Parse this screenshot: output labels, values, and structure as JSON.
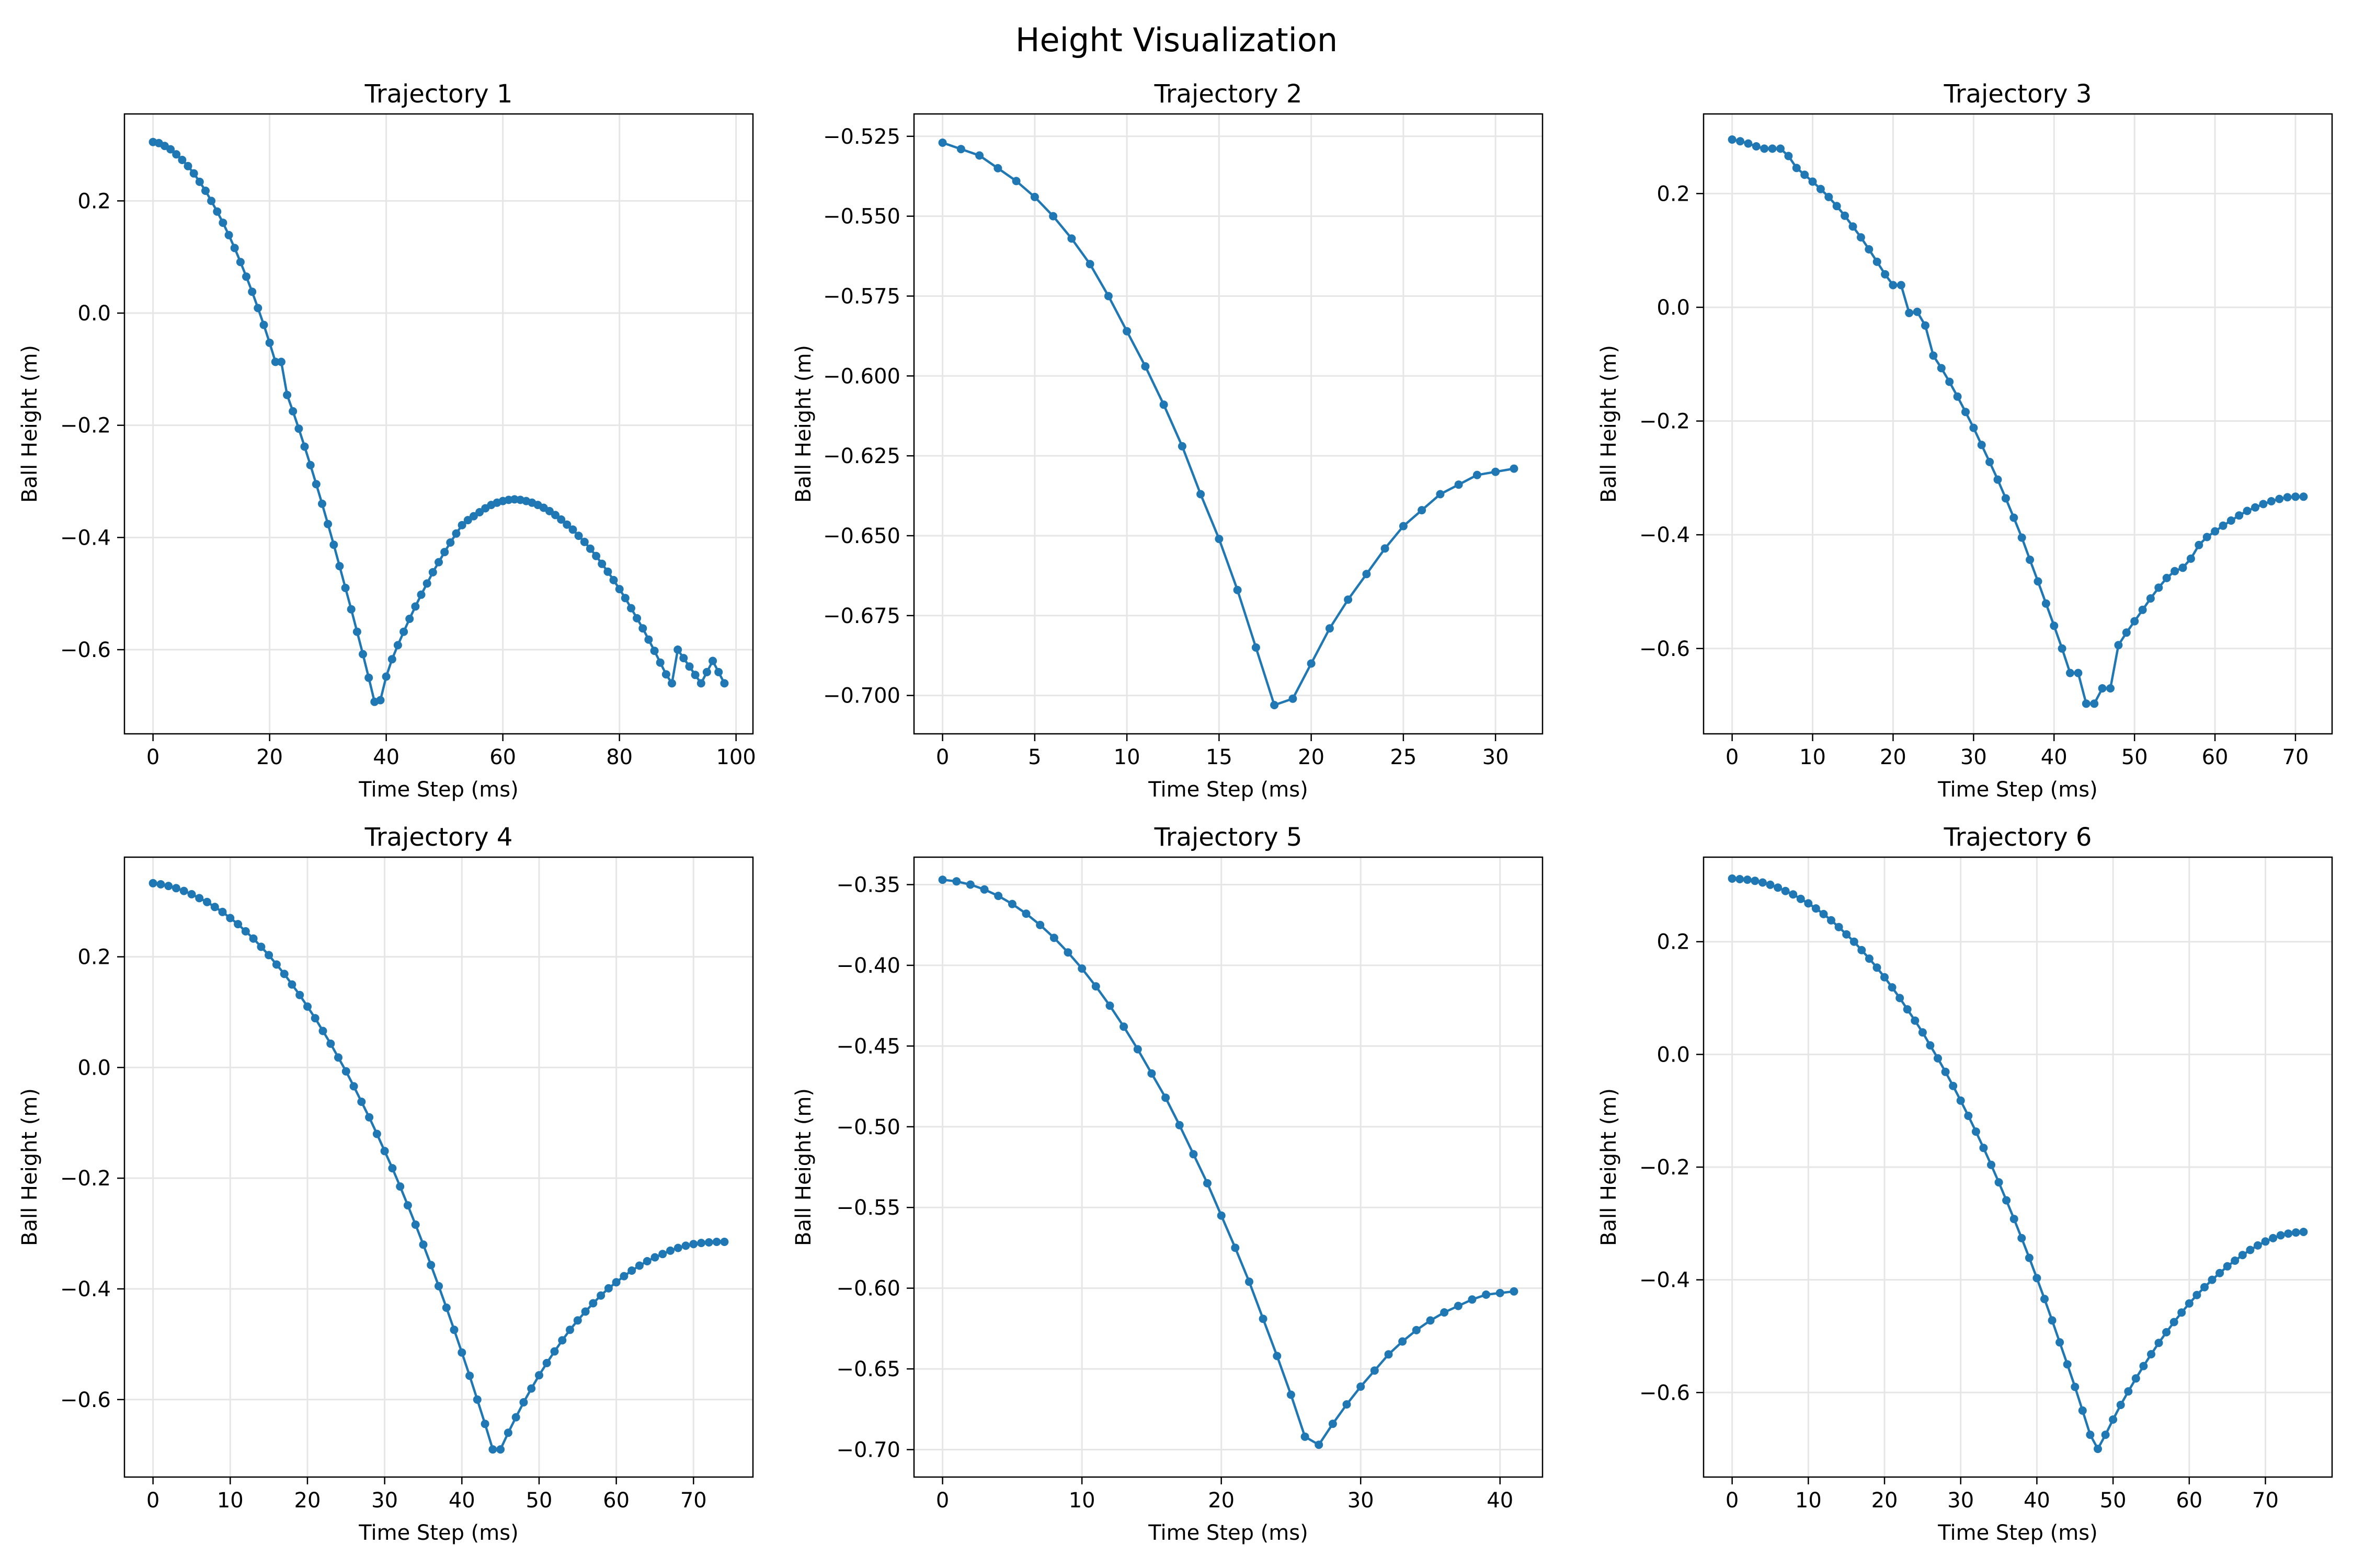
{
  "figure": {
    "title": "Height Visualization"
  },
  "style": {
    "line_color": "#1f77b4",
    "grid_color": "#e6e6e6"
  },
  "chart_data": [
    {
      "type": "line",
      "title": "Trajectory 1",
      "xlabel": "Time Step (ms)",
      "ylabel": "Ball Height (m)",
      "xlim": [
        -4.9,
        102.9
      ],
      "ylim": [
        -0.75,
        0.355
      ],
      "xticks": [
        0,
        20,
        40,
        60,
        80,
        100
      ],
      "yticks": [
        0.2,
        0.0,
        -0.2,
        -0.4,
        -0.6
      ],
      "xtick_labels": [
        "0",
        "20",
        "40",
        "60",
        "80",
        "100"
      ],
      "ytick_labels": [
        "0.2",
        "0.0",
        "−0.2",
        "−0.4",
        "−0.6"
      ],
      "grid": true,
      "x": [
        0,
        1,
        2,
        3,
        4,
        5,
        6,
        7,
        8,
        9,
        10,
        11,
        12,
        13,
        14,
        15,
        16,
        17,
        18,
        19,
        20,
        21,
        22,
        23,
        24,
        25,
        26,
        27,
        28,
        29,
        30,
        31,
        32,
        33,
        34,
        35,
        36,
        37,
        38,
        39,
        40,
        41,
        42,
        43,
        44,
        45,
        46,
        47,
        48,
        49,
        50,
        51,
        52,
        53,
        54,
        55,
        56,
        57,
        58,
        59,
        60,
        61,
        62,
        63,
        64,
        65,
        66,
        67,
        68,
        69,
        70,
        71,
        72,
        73,
        74,
        75,
        76,
        77,
        78,
        79,
        80,
        81,
        82,
        83,
        84,
        85,
        86,
        87,
        88,
        89,
        90,
        91,
        92,
        93,
        94,
        95,
        96,
        97,
        98
      ],
      "y": [
        0.305,
        0.303,
        0.298,
        0.292,
        0.283,
        0.273,
        0.262,
        0.249,
        0.234,
        0.218,
        0.2,
        0.181,
        0.161,
        0.139,
        0.116,
        0.091,
        0.065,
        0.038,
        0.009,
        -0.021,
        -0.053,
        -0.087,
        -0.087,
        -0.146,
        -0.175,
        -0.206,
        -0.238,
        -0.271,
        -0.305,
        -0.34,
        -0.376,
        -0.413,
        -0.451,
        -0.49,
        -0.528,
        -0.568,
        -0.608,
        -0.65,
        -0.693,
        -0.69,
        -0.648,
        -0.617,
        -0.592,
        -0.568,
        -0.545,
        -0.523,
        -0.502,
        -0.482,
        -0.462,
        -0.444,
        -0.426,
        -0.409,
        -0.393,
        -0.378,
        -0.369,
        -0.362,
        -0.355,
        -0.348,
        -0.342,
        -0.338,
        -0.335,
        -0.333,
        -0.332,
        -0.333,
        -0.335,
        -0.338,
        -0.342,
        -0.347,
        -0.353,
        -0.36,
        -0.368,
        -0.377,
        -0.386,
        -0.397,
        -0.408,
        -0.42,
        -0.433,
        -0.447,
        -0.461,
        -0.476,
        -0.492,
        -0.508,
        -0.526,
        -0.544,
        -0.562,
        -0.582,
        -0.602,
        -0.623,
        -0.644,
        -0.66,
        -0.6,
        -0.615,
        -0.63,
        -0.645,
        -0.66,
        -0.64,
        -0.62,
        -0.64,
        -0.66
      ]
    },
    {
      "type": "line",
      "title": "Trajectory 2",
      "xlabel": "Time Step (ms)",
      "ylabel": "Ball Height (m)",
      "xlim": [
        -1.55,
        32.55
      ],
      "ylim": [
        -0.712,
        -0.518
      ],
      "xticks": [
        0,
        5,
        10,
        15,
        20,
        25,
        30
      ],
      "yticks": [
        -0.525,
        -0.55,
        -0.575,
        -0.6,
        -0.625,
        -0.65,
        -0.675,
        -0.7
      ],
      "xtick_labels": [
        "0",
        "5",
        "10",
        "15",
        "20",
        "25",
        "30"
      ],
      "ytick_labels": [
        "−0.525",
        "−0.550",
        "−0.575",
        "−0.600",
        "−0.625",
        "−0.650",
        "−0.675",
        "−0.700"
      ],
      "grid": true,
      "x": [
        0,
        1,
        2,
        3,
        4,
        5,
        6,
        7,
        8,
        9,
        10,
        11,
        12,
        13,
        14,
        15,
        16,
        17,
        18,
        19,
        20,
        21,
        22,
        23,
        24,
        25,
        26,
        27,
        28,
        29,
        30,
        31
      ],
      "y": [
        -0.527,
        -0.529,
        -0.531,
        -0.535,
        -0.539,
        -0.544,
        -0.55,
        -0.557,
        -0.565,
        -0.575,
        -0.586,
        -0.597,
        -0.609,
        -0.622,
        -0.637,
        -0.651,
        -0.667,
        -0.685,
        -0.703,
        -0.701,
        -0.69,
        -0.679,
        -0.67,
        -0.662,
        -0.654,
        -0.647,
        -0.642,
        -0.637,
        -0.634,
        -0.631,
        -0.63,
        -0.629
      ]
    },
    {
      "type": "line",
      "title": "Trajectory 3",
      "xlabel": "Time Step (ms)",
      "ylabel": "Ball Height (m)",
      "xlim": [
        -3.55,
        74.55
      ],
      "ylim": [
        -0.75,
        0.34
      ],
      "xticks": [
        0,
        10,
        20,
        30,
        40,
        50,
        60,
        70
      ],
      "yticks": [
        0.2,
        0.0,
        -0.2,
        -0.4,
        -0.6
      ],
      "xtick_labels": [
        "0",
        "10",
        "20",
        "30",
        "40",
        "50",
        "60",
        "70"
      ],
      "ytick_labels": [
        "0.2",
        "0.0",
        "−0.2",
        "−0.4",
        "−0.6"
      ],
      "grid": true,
      "x": [
        0,
        1,
        2,
        3,
        4,
        5,
        6,
        7,
        8,
        9,
        10,
        11,
        12,
        13,
        14,
        15,
        16,
        17,
        18,
        19,
        20,
        21,
        22,
        23,
        24,
        25,
        26,
        27,
        28,
        29,
        30,
        31,
        32,
        33,
        34,
        35,
        36,
        37,
        38,
        39,
        40,
        41,
        42,
        43,
        44,
        45,
        46,
        47,
        48,
        49,
        50,
        51,
        52,
        53,
        54,
        55,
        56,
        57,
        58,
        59,
        60,
        61,
        62,
        63,
        64,
        65,
        66,
        67,
        68,
        69,
        70,
        71
      ],
      "y": [
        0.295,
        0.292,
        0.288,
        0.283,
        0.279,
        0.279,
        0.279,
        0.266,
        0.245,
        0.233,
        0.221,
        0.208,
        0.194,
        0.178,
        0.161,
        0.142,
        0.123,
        0.102,
        0.08,
        0.058,
        0.039,
        0.039,
        -0.01,
        -0.008,
        -0.032,
        -0.085,
        -0.107,
        -0.131,
        -0.157,
        -0.184,
        -0.212,
        -0.242,
        -0.272,
        -0.303,
        -0.336,
        -0.37,
        -0.405,
        -0.444,
        -0.482,
        -0.521,
        -0.56,
        -0.6,
        -0.643,
        -0.643,
        -0.697,
        -0.697,
        -0.67,
        -0.67,
        -0.594,
        -0.572,
        -0.552,
        -0.532,
        -0.512,
        -0.493,
        -0.476,
        -0.464,
        -0.458,
        -0.442,
        -0.418,
        -0.404,
        -0.394,
        -0.384,
        -0.375,
        -0.366,
        -0.358,
        -0.352,
        -0.346,
        -0.341,
        -0.337,
        -0.334,
        -0.333,
        -0.333
      ]
    },
    {
      "type": "line",
      "title": "Trajectory 4",
      "xlabel": "Time Step (ms)",
      "ylabel": "Ball Height (m)",
      "xlim": [
        -3.7,
        77.7
      ],
      "ylim": [
        -0.74,
        0.38
      ],
      "xticks": [
        0,
        10,
        20,
        30,
        40,
        50,
        60,
        70
      ],
      "yticks": [
        0.2,
        0.0,
        -0.2,
        -0.4,
        -0.6
      ],
      "xtick_labels": [
        "0",
        "10",
        "20",
        "30",
        "40",
        "50",
        "60",
        "70"
      ],
      "ytick_labels": [
        "0.2",
        "0.0",
        "−0.2",
        "−0.4",
        "−0.6"
      ],
      "grid": true,
      "x": [
        0,
        1,
        2,
        3,
        4,
        5,
        6,
        7,
        8,
        9,
        10,
        11,
        12,
        13,
        14,
        15,
        16,
        17,
        18,
        19,
        20,
        21,
        22,
        23,
        24,
        25,
        26,
        27,
        28,
        29,
        30,
        31,
        32,
        33,
        34,
        35,
        36,
        37,
        38,
        39,
        40,
        41,
        42,
        43,
        44,
        45,
        46,
        47,
        48,
        49,
        50,
        51,
        52,
        53,
        54,
        55,
        56,
        57,
        58,
        59,
        60,
        61,
        62,
        63,
        64,
        65,
        66,
        67,
        68,
        69,
        70,
        71,
        72,
        73,
        74
      ],
      "y": [
        0.333,
        0.331,
        0.328,
        0.324,
        0.319,
        0.313,
        0.306,
        0.299,
        0.29,
        0.281,
        0.27,
        0.259,
        0.246,
        0.233,
        0.218,
        0.203,
        0.186,
        0.169,
        0.15,
        0.131,
        0.11,
        0.089,
        0.066,
        0.043,
        0.018,
        -0.007,
        -0.034,
        -0.062,
        -0.09,
        -0.12,
        -0.151,
        -0.182,
        -0.215,
        -0.249,
        -0.284,
        -0.32,
        -0.357,
        -0.395,
        -0.434,
        -0.474,
        -0.515,
        -0.557,
        -0.6,
        -0.644,
        -0.69,
        -0.69,
        -0.66,
        -0.632,
        -0.605,
        -0.58,
        -0.556,
        -0.534,
        -0.513,
        -0.493,
        -0.474,
        -0.457,
        -0.441,
        -0.426,
        -0.412,
        -0.399,
        -0.388,
        -0.377,
        -0.367,
        -0.358,
        -0.35,
        -0.343,
        -0.337,
        -0.331,
        -0.326,
        -0.322,
        -0.319,
        -0.317,
        -0.316,
        -0.315,
        -0.315
      ]
    },
    {
      "type": "line",
      "title": "Trajectory 5",
      "xlabel": "Time Step (ms)",
      "ylabel": "Ball Height (m)",
      "xlim": [
        -2.05,
        43.05
      ],
      "ylim": [
        -0.717,
        -0.333
      ],
      "xticks": [
        0,
        10,
        20,
        30,
        40
      ],
      "yticks": [
        -0.35,
        -0.4,
        -0.45,
        -0.5,
        -0.55,
        -0.6,
        -0.65,
        -0.7
      ],
      "xtick_labels": [
        "0",
        "10",
        "20",
        "30",
        "40"
      ],
      "ytick_labels": [
        "−0.35",
        "−0.40",
        "−0.45",
        "−0.50",
        "−0.55",
        "−0.60",
        "−0.65",
        "−0.70"
      ],
      "grid": true,
      "x": [
        0,
        1,
        2,
        3,
        4,
        5,
        6,
        7,
        8,
        9,
        10,
        11,
        12,
        13,
        14,
        15,
        16,
        17,
        18,
        19,
        20,
        21,
        22,
        23,
        24,
        25,
        26,
        27,
        28,
        29,
        30,
        31,
        32,
        33,
        34,
        35,
        36,
        37,
        38,
        39,
        40,
        41
      ],
      "y": [
        -0.347,
        -0.348,
        -0.35,
        -0.353,
        -0.357,
        -0.362,
        -0.368,
        -0.375,
        -0.383,
        -0.392,
        -0.402,
        -0.413,
        -0.425,
        -0.438,
        -0.452,
        -0.467,
        -0.482,
        -0.499,
        -0.517,
        -0.535,
        -0.555,
        -0.575,
        -0.596,
        -0.619,
        -0.642,
        -0.666,
        -0.692,
        -0.697,
        -0.684,
        -0.672,
        -0.661,
        -0.651,
        -0.641,
        -0.633,
        -0.626,
        -0.62,
        -0.615,
        -0.611,
        -0.607,
        -0.604,
        -0.603,
        -0.602
      ]
    },
    {
      "type": "line",
      "title": "Trajectory 6",
      "xlabel": "Time Step (ms)",
      "ylabel": "Ball Height (m)",
      "xlim": [
        -3.75,
        78.75
      ],
      "ylim": [
        -0.75,
        0.35
      ],
      "xticks": [
        0,
        10,
        20,
        30,
        40,
        50,
        60,
        70
      ],
      "yticks": [
        0.2,
        0.0,
        -0.2,
        -0.4,
        -0.6
      ],
      "xtick_labels": [
        "0",
        "10",
        "20",
        "30",
        "40",
        "50",
        "60",
        "70"
      ],
      "ytick_labels": [
        "0.2",
        "0.0",
        "−0.2",
        "−0.4",
        "−0.6"
      ],
      "grid": true,
      "x": [
        0,
        1,
        2,
        3,
        4,
        5,
        6,
        7,
        8,
        9,
        10,
        11,
        12,
        13,
        14,
        15,
        16,
        17,
        18,
        19,
        20,
        21,
        22,
        23,
        24,
        25,
        26,
        27,
        28,
        29,
        30,
        31,
        32,
        33,
        34,
        35,
        36,
        37,
        38,
        39,
        40,
        41,
        42,
        43,
        44,
        45,
        46,
        47,
        48,
        49,
        50,
        51,
        52,
        53,
        54,
        55,
        56,
        57,
        58,
        59,
        60,
        61,
        62,
        63,
        64,
        65,
        66,
        67,
        68,
        69,
        70,
        71,
        72,
        73,
        74,
        75
      ],
      "y": [
        0.312,
        0.311,
        0.31,
        0.308,
        0.305,
        0.301,
        0.296,
        0.29,
        0.284,
        0.276,
        0.268,
        0.259,
        0.249,
        0.238,
        0.226,
        0.213,
        0.2,
        0.185,
        0.17,
        0.154,
        0.137,
        0.119,
        0.1,
        0.08,
        0.06,
        0.039,
        0.016,
        -0.007,
        -0.031,
        -0.056,
        -0.082,
        -0.109,
        -0.137,
        -0.166,
        -0.196,
        -0.227,
        -0.259,
        -0.292,
        -0.326,
        -0.361,
        -0.397,
        -0.434,
        -0.472,
        -0.511,
        -0.55,
        -0.59,
        -0.632,
        -0.675,
        -0.7,
        -0.675,
        -0.648,
        -0.622,
        -0.598,
        -0.575,
        -0.553,
        -0.532,
        -0.512,
        -0.493,
        -0.475,
        -0.458,
        -0.442,
        -0.427,
        -0.413,
        -0.4,
        -0.388,
        -0.376,
        -0.366,
        -0.356,
        -0.347,
        -0.339,
        -0.332,
        -0.326,
        -0.321,
        -0.318,
        -0.316,
        -0.315
      ]
    }
  ]
}
